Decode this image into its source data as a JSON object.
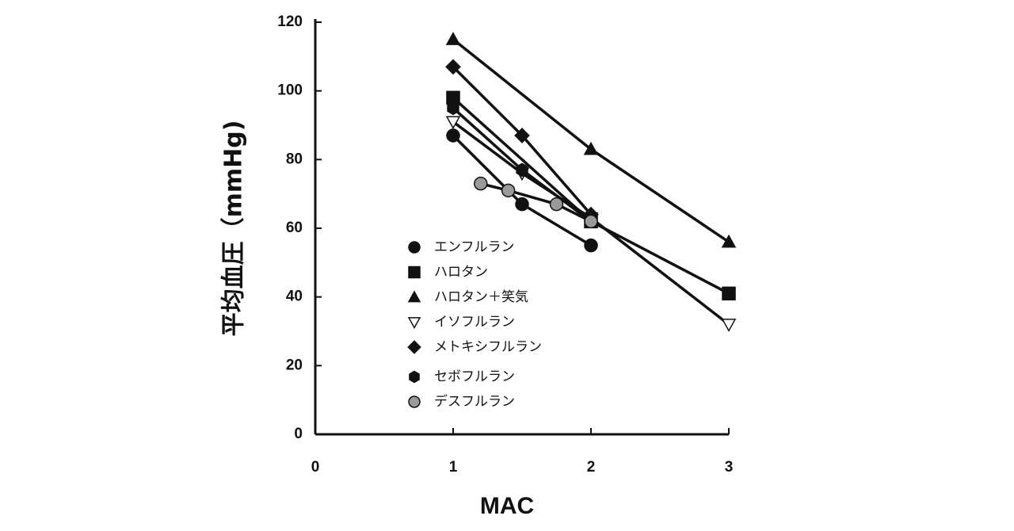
{
  "chart_data": {
    "type": "line",
    "x_label": "MAC",
    "y_label": "平均血圧（mmHg)",
    "xlim": [
      0,
      3
    ],
    "xticks": [
      0,
      1,
      2,
      3
    ],
    "ylim": [
      0,
      120
    ],
    "yticks": [
      0,
      20,
      40,
      60,
      80,
      100,
      120
    ],
    "series": [
      {
        "name": "エンフルラン",
        "color": "#111111",
        "marker": "circle",
        "marker_fill": "#111111",
        "x": [
          1,
          1.5,
          2
        ],
        "values": [
          87,
          67,
          55
        ]
      },
      {
        "name": "ハロタン",
        "color": "#111111",
        "marker": "square",
        "marker_fill": "#111111",
        "x": [
          1,
          2,
          3
        ],
        "values": [
          98,
          62,
          41
        ]
      },
      {
        "name": "ハロタン＋笑気",
        "color": "#111111",
        "marker": "triangle",
        "marker_fill": "#111111",
        "x": [
          1,
          2,
          3
        ],
        "values": [
          115,
          83,
          56
        ]
      },
      {
        "name": "イソフルラン",
        "color": "#111111",
        "marker": "triangle-down",
        "marker_fill": "#ffffff",
        "x": [
          1,
          1.5,
          2,
          3
        ],
        "values": [
          91,
          76,
          63,
          32
        ]
      },
      {
        "name": "メトキシフルラン",
        "color": "#111111",
        "marker": "diamond",
        "marker_fill": "#111111",
        "x": [
          1,
          1.5,
          2
        ],
        "values": [
          107,
          87,
          64
        ]
      },
      {
        "name": "セボフルラン",
        "color": "#111111",
        "marker": "hexagon",
        "marker_fill": "#111111",
        "x": [
          1,
          1.5,
          2
        ],
        "values": [
          95,
          77,
          62
        ]
      },
      {
        "name": "デスフルラン",
        "color": "#111111",
        "marker": "circle",
        "marker_fill": "#9a9a9a",
        "x": [
          1.2,
          1.4,
          1.75,
          2
        ],
        "values": [
          73,
          71,
          67,
          62
        ]
      }
    ]
  }
}
